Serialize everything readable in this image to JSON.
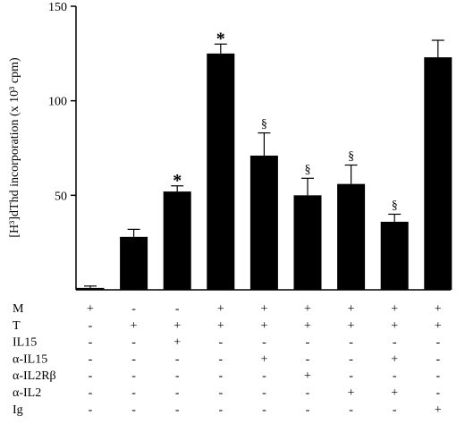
{
  "chart_data": {
    "type": "bar",
    "title": "",
    "ylabel": "[H³]dThd incorporation (x 10³ cpm)",
    "xlabel": "",
    "ylim": [
      0,
      150
    ],
    "yticks": [
      50,
      100,
      150
    ],
    "values": [
      1,
      28,
      52,
      125,
      71,
      50,
      56,
      36,
      123
    ],
    "errors": [
      1,
      4,
      3,
      5,
      12,
      9,
      10,
      4,
      9
    ],
    "annotations": [
      "",
      "",
      "*",
      "*",
      "§",
      "§",
      "§",
      "§",
      ""
    ],
    "conditions": [
      {
        "label": "M",
        "signs": [
          "+",
          "-",
          "-",
          "+",
          "+",
          "+",
          "+",
          "+",
          "+"
        ]
      },
      {
        "label": "T",
        "signs": [
          "-",
          "+",
          "+",
          "+",
          "+",
          "+",
          "+",
          "+",
          "+"
        ]
      },
      {
        "label": "IL15",
        "signs": [
          "-",
          "-",
          "+",
          "-",
          "-",
          "-",
          "-",
          "-",
          "-"
        ]
      },
      {
        "label": "α-IL15",
        "signs": [
          "-",
          "-",
          "-",
          "-",
          "+",
          "-",
          "-",
          "+",
          "-"
        ]
      },
      {
        "label": "α-IL2Rβ",
        "signs": [
          "-",
          "-",
          "-",
          "-",
          "-",
          "+",
          "-",
          "-",
          "-"
        ]
      },
      {
        "label": "α-IL2",
        "signs": [
          "-",
          "-",
          "-",
          "-",
          "-",
          "-",
          "+",
          "+",
          "-"
        ]
      },
      {
        "label": "Ig",
        "signs": [
          "-",
          "-",
          "-",
          "-",
          "-",
          "-",
          "-",
          "-",
          "+"
        ]
      }
    ],
    "bar_color": "#000000",
    "grid": false,
    "legend": "none"
  }
}
